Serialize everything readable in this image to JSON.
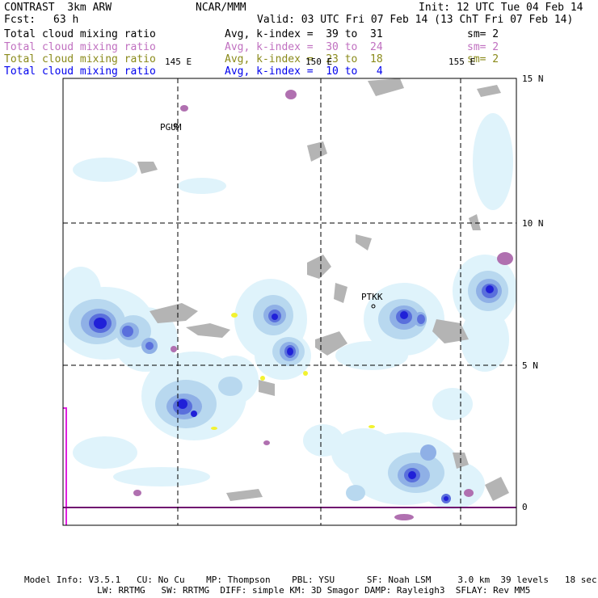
{
  "header": {
    "model": "CONTRAST  3km ARW",
    "org": "NCAR/MMM",
    "init": "Init: 12 UTC Tue 04 Feb 14",
    "fcst_label": "Fcst:",
    "fcst_value": "63 h",
    "valid": "Valid: 03 UTC Fri 07 Feb 14 (13 ChT Fri 07 Feb 14)"
  },
  "legend": [
    {
      "field": "Total cloud mixing ratio",
      "range": "Avg, k-index =  39 to  31",
      "sm": "sm= 2",
      "color": "#000000"
    },
    {
      "field": "Total cloud mixing ratio",
      "range": "Avg, k-index =  30 to  24",
      "sm": "sm= 2",
      "color": "#c070c0"
    },
    {
      "field": "Total cloud mixing ratio",
      "range": "Avg, k-index =  23 to  18",
      "sm": "sm= 2",
      "color": "#8a8a1a"
    },
    {
      "field": "Total cloud mixing ratio",
      "range": "Avg, k-index =  10 to   4",
      "sm": "",
      "color": "#0000ee"
    }
  ],
  "axes": {
    "lon_labels": [
      "145 E",
      "150 E",
      "155 E"
    ],
    "lat_labels": [
      "15 N",
      "10 N",
      "5 N",
      "0"
    ]
  },
  "stations": [
    "PGUM",
    "PTKK"
  ],
  "footer": {
    "line1": "Model Info: V3.5.1   CU: No Cu    MP: Thompson    PBL: YSU      SF: Noah LSM     3.0 km  39 levels   18 sec",
    "line2": "LW: RRTMG   SW: RRTMG  DIFF: simple KM: 3D Smagor DAMP: Rayleigh3  SFLAY: Rev MM5"
  },
  "colors": {
    "light_cyan": "#dff3fb",
    "pale_blue": "#b8d8ef",
    "mid_blue": "#8fb0e6",
    "blue": "#5a6fdc",
    "dark_blue": "#2020d8",
    "grey": "#b4b4b4",
    "purple": "#b070b0",
    "magenta_line": "#e020e0",
    "yellow": "#f2f230"
  }
}
